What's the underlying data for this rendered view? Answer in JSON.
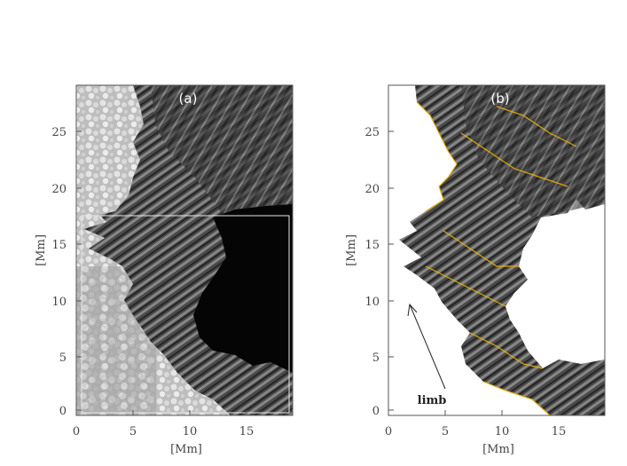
{
  "figure": {
    "panels": [
      {
        "label": "(a)",
        "xlabel": "[Mm]",
        "ylabel": "[Mm]",
        "x_ticks": [
          "0",
          "5",
          "10",
          "15"
        ],
        "y_ticks": [
          "0",
          "5",
          "10",
          "15",
          "20",
          "25"
        ]
      },
      {
        "label": "(b)",
        "xlabel": "[Mm]",
        "ylabel": "[Mm]",
        "x_ticks": [
          "0",
          "5",
          "10",
          "15"
        ],
        "y_ticks": [
          "0",
          "5",
          "10",
          "15",
          "20",
          "25"
        ],
        "annotation": "limb"
      }
    ],
    "colors": {
      "umbra": "#050505",
      "penumbra": "#4a4a4a",
      "granulation": "#c8c8c8",
      "contour": "#f0b400",
      "frame": "#444444"
    }
  }
}
